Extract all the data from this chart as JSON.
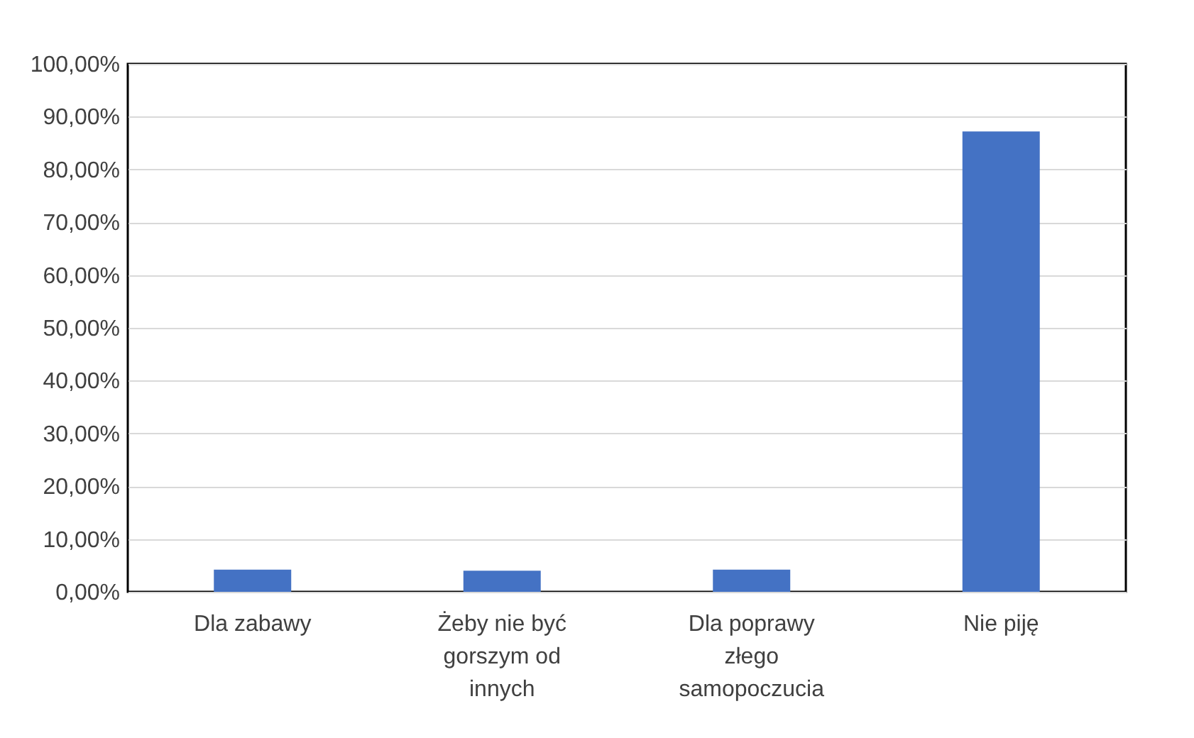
{
  "chart_data": {
    "type": "bar",
    "categories": [
      "Dla zabawy",
      "Żeby nie być gorszym od innych",
      "Dla poprawy złego samopoczucia",
      "Nie piję"
    ],
    "values": [
      4.2,
      4.0,
      4.2,
      87.2
    ],
    "color": "#4472c4",
    "ylim": [
      0,
      100
    ],
    "yticks": [
      {
        "value": 0,
        "label": "0,00%"
      },
      {
        "value": 10,
        "label": "10,00%"
      },
      {
        "value": 20,
        "label": "20,00%"
      },
      {
        "value": 30,
        "label": "30,00%"
      },
      {
        "value": 40,
        "label": "40,00%"
      },
      {
        "value": 50,
        "label": "50,00%"
      },
      {
        "value": 60,
        "label": "60,00%"
      },
      {
        "value": 70,
        "label": "70,00%"
      },
      {
        "value": 80,
        "label": "80,00%"
      },
      {
        "value": 90,
        "label": "90,00%"
      },
      {
        "value": 100,
        "label": "100,00%"
      }
    ],
    "grid": "y"
  }
}
